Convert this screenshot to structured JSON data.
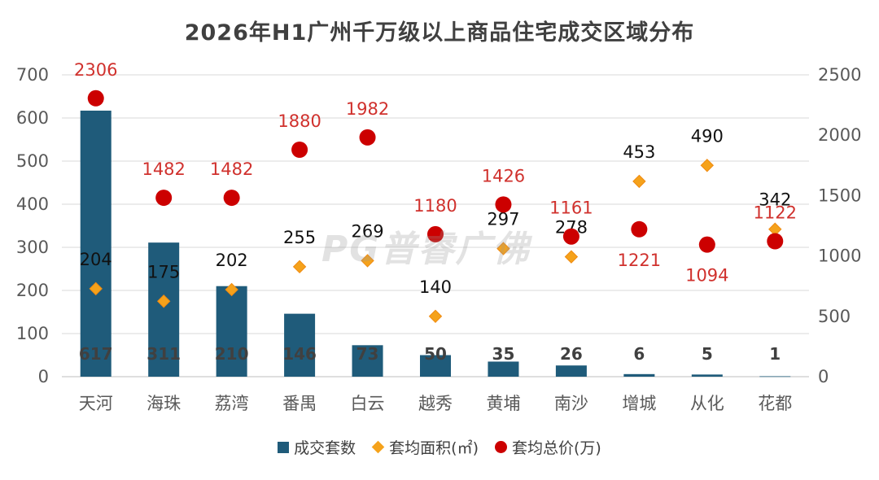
{
  "watermark": "PG普睿广佛",
  "colors": {
    "bar": "#1f5b7a",
    "area": "#f5a21b",
    "area_stroke": "#f08a10",
    "price": "#cc0000",
    "grid": "#d9d9d9",
    "axis_text": "#595959",
    "label_dark": "#111111",
    "label_red": "#d0312d"
  },
  "chart_data": {
    "type": "bar",
    "title": "2026年H1广州千万级以上商品住宅成交区域分布",
    "categories": [
      "天河",
      "海珠",
      "荔湾",
      "番禺",
      "白云",
      "越秀",
      "黄埔",
      "南沙",
      "增城",
      "从化",
      "花都"
    ],
    "left_axis": {
      "ylim": [
        0,
        700
      ],
      "ticks": [
        0,
        100,
        200,
        300,
        400,
        500,
        600,
        700
      ]
    },
    "right_axis": {
      "ylim": [
        0,
        2500
      ],
      "ticks": [
        0,
        500,
        1000,
        1500,
        2000,
        2500
      ]
    },
    "grid": true,
    "legend_position": "bottom",
    "series": [
      {
        "name": "成交套数",
        "kind": "bar",
        "axis": "left",
        "values": [
          617,
          311,
          210,
          146,
          73,
          50,
          35,
          26,
          6,
          5,
          1
        ]
      },
      {
        "name": "套均面积(㎡)",
        "kind": "diamond",
        "axis": "left",
        "values": [
          204,
          175,
          202,
          255,
          269,
          140,
          297,
          278,
          453,
          490,
          342
        ]
      },
      {
        "name": "套均总价(万)",
        "kind": "dot",
        "axis": "right",
        "values": [
          2306,
          1482,
          1482,
          1880,
          1982,
          1180,
          1426,
          1161,
          1221,
          1094,
          1122
        ]
      }
    ]
  }
}
